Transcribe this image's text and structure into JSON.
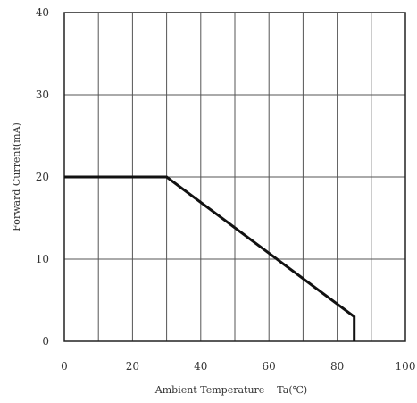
{
  "chart_data": {
    "type": "line",
    "xlabel": "Ambient Temperature    Ta(℃)",
    "ylabel": "Forward Current(mA)",
    "xlim": [
      0,
      100
    ],
    "ylim": [
      0,
      40
    ],
    "x_ticks": [
      "0",
      "20",
      "40",
      "60",
      "80",
      "100"
    ],
    "y_ticks": [
      "0",
      "10",
      "20",
      "30",
      "40"
    ],
    "grid": true,
    "series": [
      {
        "points": [
          {
            "x": 0,
            "y": 20
          },
          {
            "x": 30,
            "y": 20
          },
          {
            "x": 85,
            "y": 3
          },
          {
            "x": 85,
            "y": 0
          }
        ]
      }
    ]
  }
}
